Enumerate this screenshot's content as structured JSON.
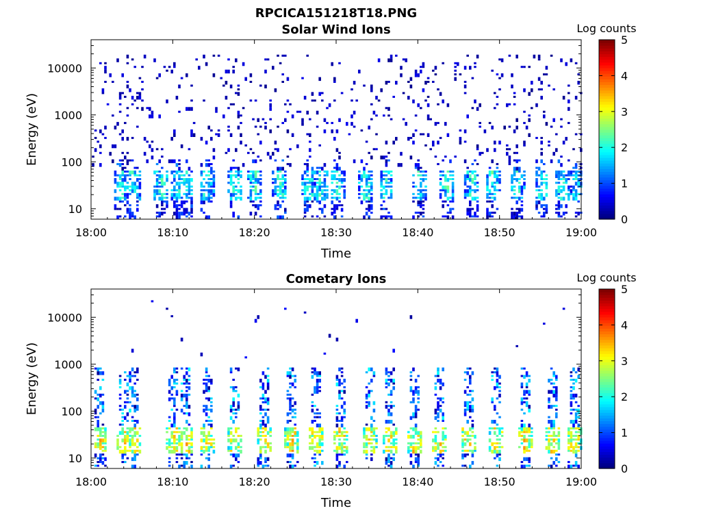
{
  "figure": {
    "filename_title": "RPCICA151218T18.PNG"
  },
  "chart_data": [
    {
      "type": "heatmap",
      "title": "Solar Wind Ions",
      "xlabel": "Time",
      "ylabel": "Energy (eV)",
      "x_ticks": [
        "18:00",
        "18:10",
        "18:20",
        "18:30",
        "18:40",
        "18:50",
        "19:00"
      ],
      "x_range": [
        "18:00",
        "19:00"
      ],
      "y_scale": "log",
      "y_ticks": [
        "10",
        "100",
        "1000",
        "10000"
      ],
      "y_range": [
        6,
        40000
      ],
      "colorbar": {
        "label": "Log counts",
        "range": [
          0,
          5
        ],
        "ticks": [
          "0",
          "1",
          "2",
          "3",
          "4",
          "5"
        ],
        "colormap": "jet"
      },
      "pulse_minutes": [
        3.5,
        5,
        8.5,
        10.5,
        11.5,
        14,
        17.5,
        20,
        23,
        26.5,
        28,
        30,
        33.5,
        36,
        40,
        43.5,
        46.5,
        49,
        52,
        55,
        57.5,
        59.5
      ],
      "low_energy_band_eV": [
        15,
        60
      ],
      "sparse_background": true
    },
    {
      "type": "heatmap",
      "title": "Cometary Ions",
      "xlabel": "Time",
      "ylabel": "Energy (eV)",
      "x_ticks": [
        "18:00",
        "18:10",
        "18:20",
        "18:30",
        "18:40",
        "18:50",
        "19:00"
      ],
      "x_range": [
        "18:00",
        "19:00"
      ],
      "y_scale": "log",
      "y_ticks": [
        "10",
        "100",
        "1000",
        "10000"
      ],
      "y_range": [
        6,
        40000
      ],
      "colorbar": {
        "label": "Log counts",
        "range": [
          0,
          5
        ],
        "ticks": [
          "0",
          "1",
          "2",
          "3",
          "4",
          "5"
        ],
        "colormap": "jet"
      },
      "pulse_minutes": [
        1,
        4,
        5,
        10,
        11.5,
        14,
        17.5,
        21,
        24.5,
        27.5,
        30.5,
        34,
        36.5,
        39.5,
        42.5,
        46,
        49.5,
        53,
        56.5,
        59
      ],
      "low_energy_band_eV": [
        12,
        45
      ],
      "sparse_background": false
    }
  ]
}
